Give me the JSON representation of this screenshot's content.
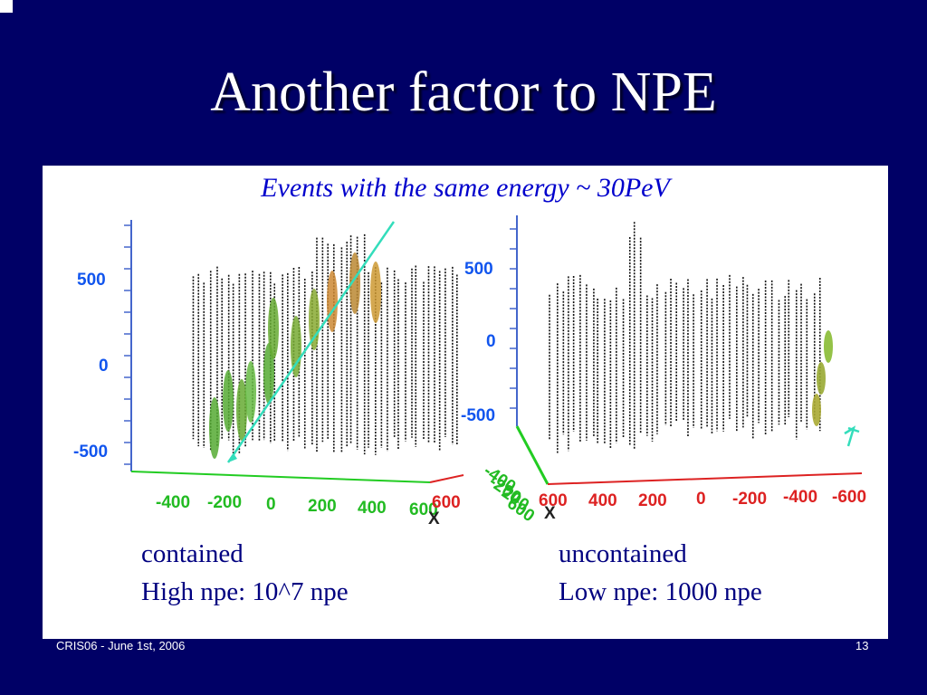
{
  "slide": {
    "title": "Another factor to NPE",
    "subtitle": "Events with the same energy ~ 30PeV",
    "footer_left": "CRIS06 - June 1st, 2006",
    "footer_right": "13"
  },
  "plots": {
    "left": {
      "y_ticks": [
        "500",
        "0",
        "-500"
      ],
      "x_ticks": [
        "-400",
        "-200",
        "0",
        "200",
        "400",
        "600"
      ],
      "x_axis_letter": "X",
      "partial_label": "600"
    },
    "right": {
      "y_ticks": [
        "500",
        "0",
        "-500"
      ],
      "x_ticks": [
        "600",
        "400",
        "200",
        "0",
        "-200",
        "-400",
        "-600"
      ],
      "x_axis_letter": "X",
      "y_axis_ticks": [
        "-400",
        "-200",
        "200",
        "600"
      ]
    }
  },
  "captions": {
    "left": {
      "line1": "contained",
      "line2": "High npe: 10^7 npe"
    },
    "right": {
      "line1": "uncontained",
      "line2": "Low npe: 1000 npe"
    }
  },
  "colors": {
    "background": "#000066",
    "title": "#ffffff",
    "subtitle": "#0000cc",
    "caption": "#000080",
    "vertical_axis": "#4466cc",
    "x_axis": "#dd2222",
    "y_axis_3d": "#22cc22",
    "track": "#33ddbb"
  }
}
